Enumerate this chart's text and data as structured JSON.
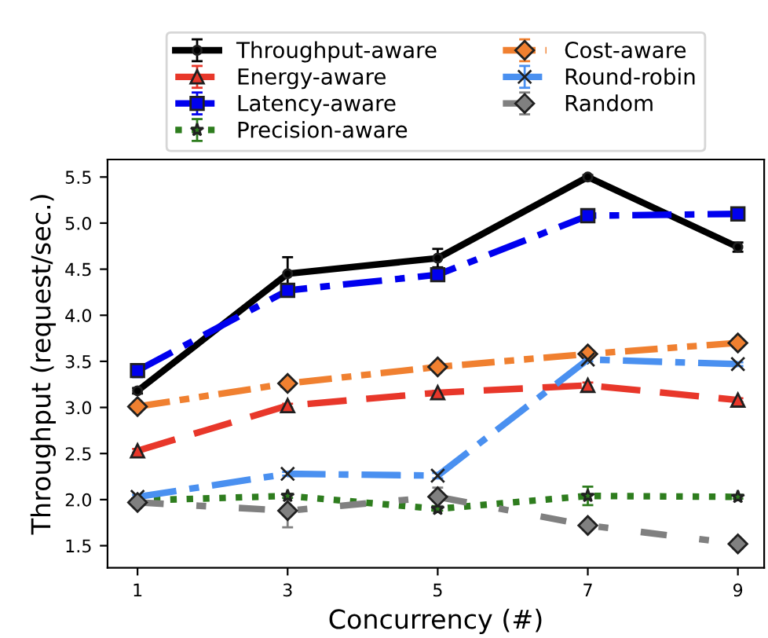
{
  "chart_data": {
    "type": "line",
    "xlabel": "Concurrency (#)",
    "ylabel": "Throughput (request/sec.)",
    "x": [
      1,
      3,
      5,
      7,
      9
    ],
    "xlim": [
      0.6,
      9.35
    ],
    "xticks": [
      1,
      3,
      5,
      7,
      9
    ],
    "ylim": [
      1.26,
      5.69
    ],
    "yticks": [
      1.5,
      {
        "value": 2,
        "label": "2.0"
      },
      2.5,
      {
        "value": 3,
        "label": "3.0"
      },
      3.5,
      {
        "value": 4,
        "label": "4.0"
      },
      4.5,
      {
        "value": 5,
        "label": "5.0"
      },
      5.5
    ],
    "grid": false,
    "legend": "top",
    "series": [
      {
        "name": "Throughput-aware",
        "color": "#000000",
        "line_style": "solid",
        "marker": "circle",
        "values": [
          3.18,
          4.45,
          4.62,
          5.5,
          4.74
        ],
        "errors": [
          0.03,
          0.18,
          0.1,
          0.02,
          0.05
        ]
      },
      {
        "name": "Energy-aware",
        "color": "#e8372a",
        "line_style": "dashed",
        "marker": "triangle",
        "values": [
          2.53,
          3.02,
          3.16,
          3.24,
          3.08
        ],
        "errors": [
          0.02,
          0.02,
          0.02,
          0.03,
          0.02
        ]
      },
      {
        "name": "Latency-aware",
        "color": "#0000ee",
        "line_style": "dashdot",
        "marker": "square",
        "values": [
          3.4,
          4.27,
          4.44,
          5.08,
          5.1
        ],
        "errors": [
          0.07,
          0.02,
          0.02,
          0.02,
          0.02
        ]
      },
      {
        "name": "Precision-aware",
        "color": "#2e7d1e",
        "line_style": "dotted",
        "marker": "star",
        "values": [
          1.99,
          2.04,
          1.9,
          2.04,
          2.03
        ],
        "errors": [
          null,
          0.02,
          0.02,
          0.1,
          0.02
        ]
      },
      {
        "name": "Cost-aware",
        "color": "#f08030",
        "line_style": "dashdotdot",
        "marker": "diamond",
        "values": [
          3.01,
          3.26,
          3.44,
          3.58,
          3.7
        ],
        "errors": [
          0.02,
          0.02,
          0.02,
          0.03,
          0.02
        ]
      },
      {
        "name": "Round-robin",
        "color": "#4a90f0",
        "line_style": "dashdot",
        "marker": "cross",
        "values": [
          2.03,
          2.28,
          2.26,
          3.52,
          3.47
        ],
        "errors": [
          0.02,
          0.02,
          0.03,
          0.02,
          0.02
        ]
      },
      {
        "name": "Random",
        "color": "#808080",
        "line_style": "loosedashdot",
        "marker": "diamond",
        "values": [
          1.97,
          1.88,
          2.03,
          1.72,
          1.52
        ],
        "errors": [
          0.04,
          0.18,
          0.1,
          0.04,
          0.05
        ]
      }
    ]
  }
}
